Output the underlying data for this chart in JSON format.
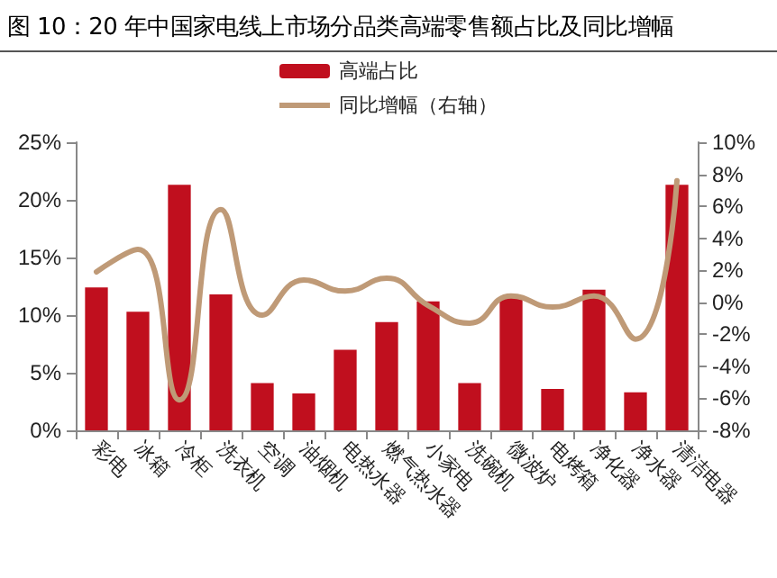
{
  "chart_data": {
    "type": "bar",
    "title": "图 10：20 年中国家电线上市场分品类高端零售额占比及同比增幅",
    "categories": [
      "彩电",
      "冰箱",
      "冷柜",
      "洗衣机",
      "空调",
      "油烟机",
      "电热水器",
      "燃气热水器",
      "小家电",
      "洗碗机",
      "微波炉",
      "电烤箱",
      "净化器",
      "净水器",
      "清洁电器"
    ],
    "series": [
      {
        "name": "高端占比",
        "color": "#c00f1e",
        "values": [
          12.4,
          10.3,
          21.3,
          11.8,
          4.1,
          3.2,
          7.0,
          9.4,
          11.2,
          4.1,
          11.6,
          3.6,
          12.2,
          3.3,
          21.3
        ]
      },
      {
        "name": "同比增幅（右轴）",
        "type": "line",
        "axis": "y2",
        "color": "#bf9a77",
        "values": [
          1.9,
          3.3,
          -6.1,
          5.8,
          -0.8,
          1.4,
          0.7,
          1.5,
          -0.2,
          -1.3,
          0.4,
          -0.3,
          0.4,
          -2.3,
          7.6
        ]
      }
    ],
    "ylim": [
      0,
      25
    ],
    "yticks": [
      {
        "value": 0,
        "label": "0%"
      },
      {
        "value": 5,
        "label": "5%"
      },
      {
        "value": 10,
        "label": "10%"
      },
      {
        "value": 15,
        "label": "15%"
      },
      {
        "value": 20,
        "label": "20%"
      },
      {
        "value": 25,
        "label": "25%"
      }
    ],
    "y2lim": [
      -8,
      10
    ],
    "y2ticks": [
      {
        "value": -8,
        "label": "-8%"
      },
      {
        "value": -6,
        "label": "-6%"
      },
      {
        "value": -4,
        "label": "-4%"
      },
      {
        "value": -2,
        "label": "-2%"
      },
      {
        "value": 0,
        "label": "0%"
      },
      {
        "value": 2,
        "label": "2%"
      },
      {
        "value": 4,
        "label": "4%"
      },
      {
        "value": 6,
        "label": "6%"
      },
      {
        "value": 8,
        "label": "8%"
      },
      {
        "value": 10,
        "label": "10%"
      }
    ],
    "grid": false,
    "legend": "top",
    "marker": "none",
    "line_style": "solid"
  }
}
